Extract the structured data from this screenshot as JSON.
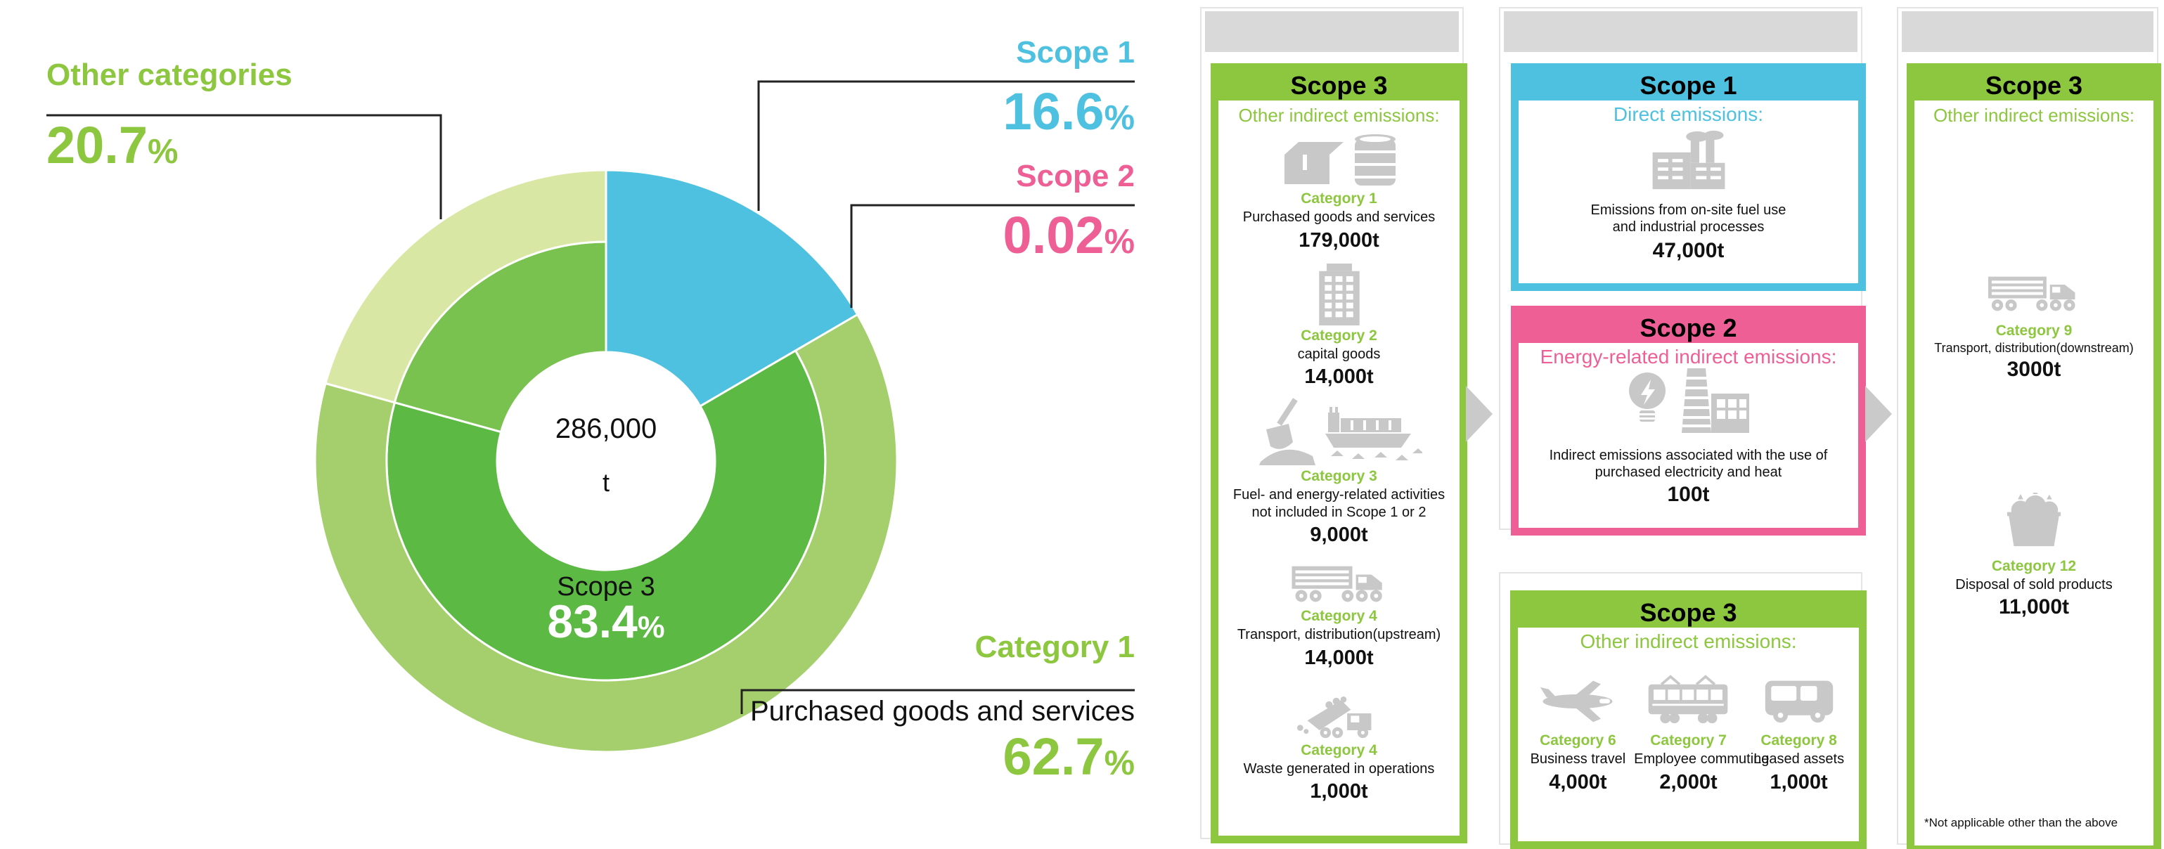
{
  "colors": {
    "accent_green": "#8dc63f",
    "accent_blue": "#4ec1e0",
    "accent_pink": "#ee5f96",
    "donut_scope3_inner": "#5cb944",
    "donut_scope3_inner_alt": "#79c24f",
    "donut_category1_outer": "#a5cf6d",
    "donut_other_outer": "#d9e7a4",
    "icon_gray": "#c8c8c8",
    "strip_gray": "#d9d9d9"
  },
  "chart_data": {
    "type": "pie",
    "subtype": "two-ring donut",
    "total_label": "286,000 t",
    "legend_position": "callouts",
    "inner_ring": [
      {
        "label": "Scope 1",
        "percent": 16.6,
        "color": "#4ec1e0"
      },
      {
        "label": "Scope 2",
        "percent": 0.02,
        "color": "#ee5f96"
      },
      {
        "label": "Scope 3",
        "percent": 83.4,
        "color": "#5cb944",
        "color_alt": "#79c24f"
      }
    ],
    "outer_ring": [
      {
        "label": "Category 1 (Purchased goods and services)",
        "percent": 62.7,
        "color": "#a5cf6d"
      },
      {
        "label": "Other categories",
        "percent": 20.7,
        "color": "#d9e7a4"
      }
    ]
  },
  "donut": {
    "center": {
      "value": "286,000",
      "unit": "t"
    },
    "scope3": {
      "label": "Scope 3",
      "value": "83.4",
      "pct": "%"
    },
    "callouts": {
      "other_categories": {
        "label": "Other categories",
        "value": "20.7",
        "pct": "%"
      },
      "scope1": {
        "label": "Scope 1",
        "value": "16.6",
        "pct": "%"
      },
      "scope2": {
        "label": "Scope 2",
        "value": "0.02",
        "pct": "%"
      },
      "category1": {
        "label": "Category 1",
        "desc": "Purchased goods and services",
        "value": "62.7",
        "pct": "%"
      }
    }
  },
  "cards": {
    "scope3_upstream": {
      "header": "Scope 3",
      "subtitle": "Other indirect emissions:",
      "items": [
        {
          "icon": "box-and-barrel-icon",
          "category": "Category 1",
          "desc": "Purchased goods and services",
          "value": "179,000t"
        },
        {
          "icon": "building-icon",
          "category": "Category 2",
          "desc": "capital goods",
          "value": "14,000t"
        },
        {
          "icon": "shovel-and-ship-icon",
          "category": "Category 3",
          "desc": "Fuel- and energy-related activities\nnot included in Scope 1 or 2",
          "value": "9,000t"
        },
        {
          "icon": "truck-icon",
          "category": "Category 4",
          "desc": "Transport, distribution(upstream)",
          "value": "14,000t"
        },
        {
          "icon": "dump-truck-icon",
          "category": "Category 4",
          "desc": "Waste generated in operations",
          "value": "1,000t"
        }
      ]
    },
    "scope1": {
      "header": "Scope 1",
      "subtitle": "Direct emissions:",
      "icon": "factory-icon",
      "desc": "Emissions from on-site fuel use\nand industrial processes",
      "value": "47,000t"
    },
    "scope2": {
      "header": "Scope 2",
      "subtitle": "Energy-related indirect emissions:",
      "icon": "lightbulb-and-power-plant-icon",
      "desc": "Indirect emissions associated with the use of\npurchased electricity and heat",
      "value": "100t"
    },
    "scope3_operations": {
      "header": "Scope 3",
      "subtitle": "Other indirect emissions:",
      "items": [
        {
          "icon": "airplane-icon",
          "category": "Category 6",
          "desc": "Business travel",
          "value": "4,000t"
        },
        {
          "icon": "tram-icon",
          "category": "Category 7",
          "desc": "Employee commuting",
          "value": "2,000t"
        },
        {
          "icon": "bus-icon",
          "category": "Category 8",
          "desc": "Leased assets",
          "value": "1,000t"
        }
      ]
    },
    "scope3_downstream": {
      "header": "Scope 3",
      "subtitle": "Other indirect emissions:",
      "items": [
        {
          "icon": "truck-icon",
          "category": "Category 9",
          "desc": "Transport, distribution(downstream)",
          "value": "3000t"
        },
        {
          "icon": "trash-bags-icon",
          "category": "Category 12",
          "desc": "Disposal of sold products",
          "value": "11,000t"
        }
      ],
      "footnote": "*Not applicable other than the above"
    }
  }
}
